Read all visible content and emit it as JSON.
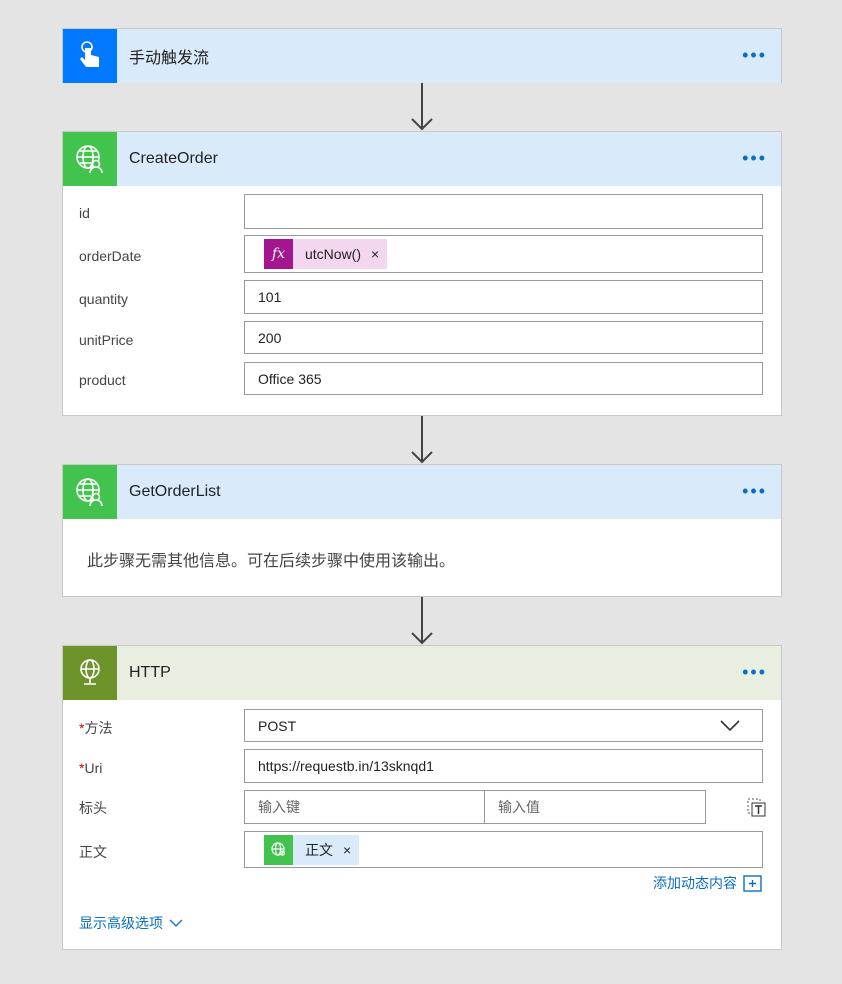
{
  "colors": {
    "trigger": "#0078ff",
    "connector": "#41c34e",
    "http": "#6d942a",
    "accent": "#0a6fc2",
    "fx": "#a3168f"
  },
  "trigger": {
    "title": "手动触发流",
    "icon": "hand-touch-icon"
  },
  "create_order": {
    "title": "CreateOrder",
    "icon": "globe-user-icon",
    "fields": [
      {
        "label": "id",
        "value": ""
      },
      {
        "label": "orderDate",
        "token": "utcNow()"
      },
      {
        "label": "quantity",
        "value": "101"
      },
      {
        "label": "unitPrice",
        "value": "200"
      },
      {
        "label": "product",
        "value": "Office 365"
      }
    ]
  },
  "get_order_list": {
    "title": "GetOrderList",
    "icon": "globe-user-icon",
    "message": "此步骤无需其他信息。可在后续步骤中使用该输出。"
  },
  "http": {
    "title": "HTTP",
    "icon": "globe-icon",
    "method_label": "方法",
    "method_value": "POST",
    "uri_label": "Uri",
    "uri_value": "https://requestb.in/13sknqd1",
    "headers_label": "标头",
    "key_placeholder": "输入键",
    "value_placeholder": "输入值",
    "body_label": "正文",
    "body_token": "正文",
    "add_dynamic": "添加动态内容",
    "advanced": "显示高级选项"
  },
  "more": "•••",
  "remove": "×",
  "required": "*"
}
